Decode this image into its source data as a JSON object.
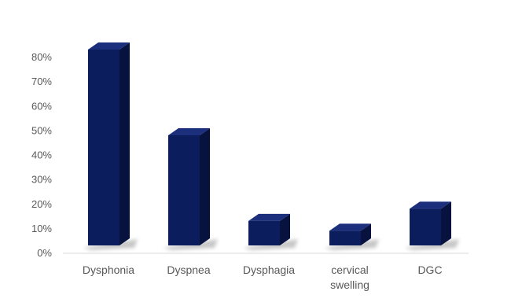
{
  "chart_data": {
    "type": "bar",
    "style": "3d-column",
    "categories": [
      "Dysphonia",
      "Dyspnea",
      "Dysphagia",
      "cervical swelling",
      "DGC"
    ],
    "category_label_lines": [
      [
        "Dysphonia"
      ],
      [
        "Dyspnea"
      ],
      [
        "Dysphagia"
      ],
      [
        "cervical",
        "swelling"
      ],
      [
        "DGC"
      ]
    ],
    "values": [
      80,
      45,
      10,
      6,
      15
    ],
    "y_ticks": [
      "0%",
      "10%",
      "20%",
      "30%",
      "40%",
      "50%",
      "60%",
      "70%",
      "80%"
    ],
    "ylim": [
      0,
      80
    ],
    "grid": false,
    "legend": "none",
    "colors": {
      "bar_front": "#0c1d5e",
      "bar_top": "#1b2f7c",
      "bar_side": "#07123f",
      "shadow": "#9a9a9a",
      "axis": "#d9d9d9",
      "tick_text": "#595959"
    }
  }
}
